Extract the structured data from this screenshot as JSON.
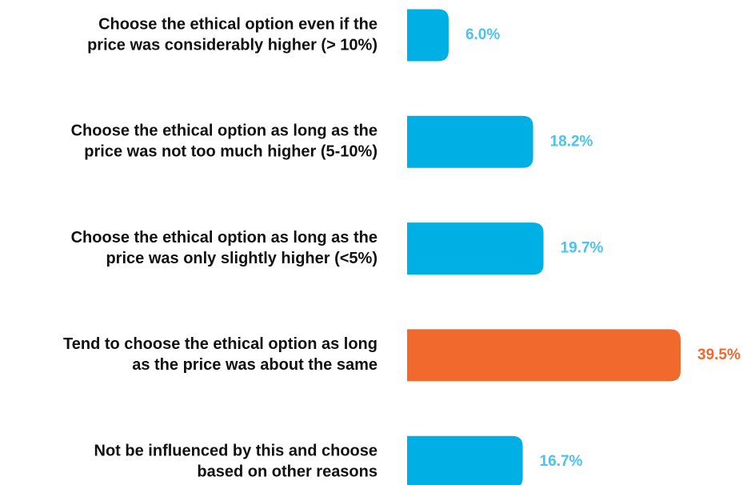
{
  "chart_data": {
    "type": "bar",
    "orientation": "horizontal",
    "categories": [
      [
        "Choose the ethical option even if the",
        "price was considerably higher (> 10%)"
      ],
      [
        "Choose the ethical option as long as the",
        "price was not too much higher (5-10%)"
      ],
      [
        "Choose the ethical option as long as the",
        "price was only slightly higher (<5%)"
      ],
      [
        "Tend to choose the ethical option as long",
        "as the price was about the same"
      ],
      [
        "Not be influenced by this and choose",
        "based on other reasons"
      ]
    ],
    "values": [
      6.0,
      18.2,
      19.7,
      39.5,
      16.7
    ],
    "value_labels": [
      "6.0%",
      "18.2%",
      "19.7%",
      "39.5%",
      "16.7%"
    ],
    "colors": [
      "#00b0e4",
      "#00b0e4",
      "#00b0e4",
      "#f2692d",
      "#00b0e4"
    ],
    "label_colors": [
      "#4dc2ea",
      "#4dc2ea",
      "#4dc2ea",
      "#f2692d",
      "#4dc2ea"
    ]
  }
}
